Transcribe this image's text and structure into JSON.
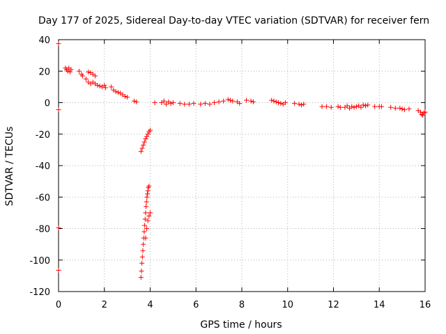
{
  "chart_data": {
    "type": "scatter",
    "title": "Day 177 of 2025, Sidereal Day-to-day VTEC variation (SDTVAR) for receiver fern",
    "xlabel": "GPS time / hours",
    "ylabel": "SDTVAR / TECUs",
    "xlim": [
      0,
      16
    ],
    "ylim": [
      -120,
      40
    ],
    "xticks": [
      "0",
      "2",
      "4",
      "6",
      "8",
      "10",
      "12",
      "14",
      "16"
    ],
    "yticks": [
      "40",
      "20",
      "0",
      "-20",
      "-40",
      "-60",
      "-80",
      "-100",
      "-120"
    ],
    "grid": true,
    "marker": "plus",
    "color": "#ff0000",
    "series": [
      {
        "name": "SDTVAR",
        "points": [
          [
            0.0,
            37.5
          ],
          [
            0.0,
            -4.5
          ],
          [
            0.0,
            -79.5
          ],
          [
            0.0,
            -106.5
          ],
          [
            0.3,
            22
          ],
          [
            0.35,
            21
          ],
          [
            0.4,
            20
          ],
          [
            0.45,
            22
          ],
          [
            0.5,
            19.5
          ],
          [
            0.55,
            21
          ],
          [
            0.9,
            20
          ],
          [
            1.0,
            18
          ],
          [
            1.05,
            17
          ],
          [
            1.3,
            19.5
          ],
          [
            1.4,
            19
          ],
          [
            1.5,
            18
          ],
          [
            1.6,
            17
          ],
          [
            1.2,
            15
          ],
          [
            1.3,
            13
          ],
          [
            1.4,
            12
          ],
          [
            1.5,
            13
          ],
          [
            1.6,
            12
          ],
          [
            1.7,
            11
          ],
          [
            1.8,
            10.5
          ],
          [
            1.9,
            10
          ],
          [
            2.0,
            11
          ],
          [
            2.05,
            9.5
          ],
          [
            2.3,
            10
          ],
          [
            2.4,
            8
          ],
          [
            2.5,
            7
          ],
          [
            2.6,
            6.5
          ],
          [
            2.7,
            6
          ],
          [
            2.8,
            5
          ],
          [
            2.9,
            4
          ],
          [
            3.0,
            3.5
          ],
          [
            3.3,
            1
          ],
          [
            3.4,
            0.5
          ],
          [
            3.6,
            -31
          ],
          [
            3.65,
            -29
          ],
          [
            3.7,
            -27
          ],
          [
            3.75,
            -25
          ],
          [
            3.8,
            -23
          ],
          [
            3.85,
            -21.5
          ],
          [
            3.9,
            -20
          ],
          [
            3.95,
            -18.5
          ],
          [
            4.0,
            -17.5
          ],
          [
            3.6,
            -111
          ],
          [
            3.62,
            -107
          ],
          [
            3.64,
            -102
          ],
          [
            3.66,
            -98
          ],
          [
            3.68,
            -94
          ],
          [
            3.7,
            -90
          ],
          [
            3.72,
            -86
          ],
          [
            3.74,
            -82
          ],
          [
            3.76,
            -78
          ],
          [
            3.78,
            -74
          ],
          [
            3.8,
            -70
          ],
          [
            3.82,
            -66
          ],
          [
            3.84,
            -63
          ],
          [
            3.86,
            -60
          ],
          [
            3.88,
            -58
          ],
          [
            3.9,
            -56
          ],
          [
            3.92,
            -54
          ],
          [
            3.95,
            -53
          ],
          [
            3.8,
            -86
          ],
          [
            3.85,
            -80
          ],
          [
            3.9,
            -75
          ],
          [
            3.95,
            -72
          ],
          [
            4.0,
            -70
          ],
          [
            4.2,
            0
          ],
          [
            4.5,
            0
          ],
          [
            4.6,
            1
          ],
          [
            4.7,
            -1
          ],
          [
            4.8,
            0.5
          ],
          [
            4.9,
            -0.5
          ],
          [
            5.0,
            0
          ],
          [
            5.3,
            -0.5
          ],
          [
            5.5,
            -1
          ],
          [
            5.7,
            -1
          ],
          [
            5.9,
            -0.5
          ],
          [
            6.2,
            -1
          ],
          [
            6.4,
            -0.5
          ],
          [
            6.6,
            -1
          ],
          [
            6.8,
            0
          ],
          [
            7.0,
            0.5
          ],
          [
            7.2,
            1
          ],
          [
            7.4,
            2
          ],
          [
            7.5,
            1.5
          ],
          [
            7.6,
            1
          ],
          [
            7.8,
            0.5
          ],
          [
            7.9,
            -0.5
          ],
          [
            8.2,
            1.5
          ],
          [
            8.4,
            1
          ],
          [
            8.5,
            0.5
          ],
          [
            9.3,
            1.5
          ],
          [
            9.4,
            1
          ],
          [
            9.5,
            0.5
          ],
          [
            9.6,
            0
          ],
          [
            9.7,
            -0.5
          ],
          [
            9.8,
            -1
          ],
          [
            9.9,
            0
          ],
          [
            10.3,
            -0.5
          ],
          [
            10.5,
            -1
          ],
          [
            10.6,
            -1.5
          ],
          [
            10.7,
            -1
          ],
          [
            11.5,
            -2.5
          ],
          [
            11.7,
            -2.5
          ],
          [
            11.9,
            -3
          ],
          [
            12.2,
            -2.5
          ],
          [
            12.3,
            -3
          ],
          [
            12.5,
            -3
          ],
          [
            12.6,
            -2
          ],
          [
            12.7,
            -3.5
          ],
          [
            12.8,
            -2.5
          ],
          [
            12.9,
            -3
          ],
          [
            13.0,
            -2.5
          ],
          [
            13.1,
            -2
          ],
          [
            13.2,
            -3
          ],
          [
            13.3,
            -1.5
          ],
          [
            13.4,
            -2
          ],
          [
            13.5,
            -1.5
          ],
          [
            13.8,
            -2.5
          ],
          [
            14.0,
            -2.5
          ],
          [
            14.1,
            -2.5
          ],
          [
            14.5,
            -3
          ],
          [
            14.7,
            -3.5
          ],
          [
            14.9,
            -3.5
          ],
          [
            15.0,
            -4
          ],
          [
            15.1,
            -4.5
          ],
          [
            15.3,
            -4
          ],
          [
            15.7,
            -5
          ],
          [
            15.8,
            -6
          ],
          [
            15.85,
            -7.5
          ],
          [
            15.9,
            -8
          ],
          [
            15.95,
            -6.5
          ],
          [
            16.0,
            -6
          ]
        ]
      }
    ]
  }
}
